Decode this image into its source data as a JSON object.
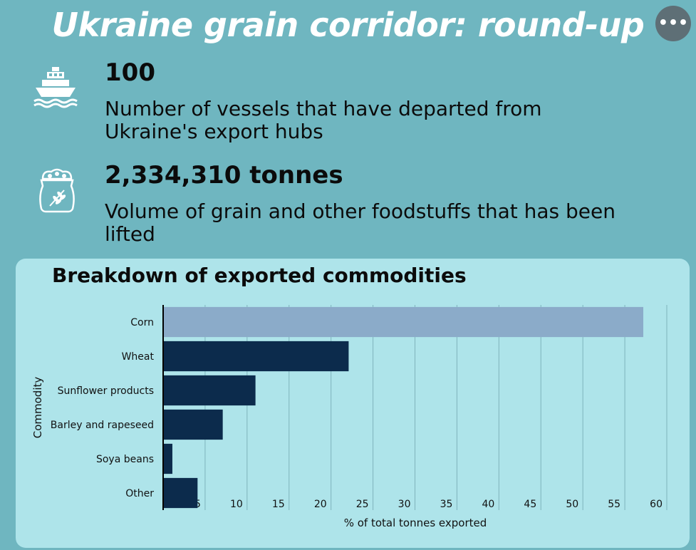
{
  "header": {
    "title": "Ukraine grain corridor: round-up",
    "menu_icon": "more-horizontal-icon",
    "menu_label": "•••"
  },
  "stats": [
    {
      "icon": "ship-icon",
      "value": "100",
      "line1": "Number of vessels that have departed from",
      "line2": "Ukraine's export hubs"
    },
    {
      "icon": "grain-sack-icon",
      "value": "2,334,310 tonnes",
      "line1": "Volume of grain and other foodstuffs that has been",
      "line2": "lifted"
    }
  ],
  "colors": {
    "background": "#6fb6c0",
    "panel": "#aee4ea",
    "highlight_bar": "#8babc9",
    "bar": "#0c2b4c"
  },
  "chart_data": {
    "type": "bar",
    "orientation": "horizontal",
    "title": "Breakdown of exported commodities",
    "xlabel": "% of total tonnes exported",
    "ylabel": "Commodity",
    "categories": [
      "Corn",
      "Wheat",
      "Sunflower products",
      "Barley and rapeseed",
      "Soya beans",
      "Other"
    ],
    "values": [
      57.2,
      22.1,
      11.0,
      7.1,
      1.1,
      4.1
    ],
    "highlight_index": 0,
    "xlim": [
      0,
      60
    ],
    "xticks": [
      5,
      10,
      15,
      20,
      25,
      30,
      35,
      40,
      45,
      50,
      55,
      60
    ],
    "grid": "vertical"
  }
}
